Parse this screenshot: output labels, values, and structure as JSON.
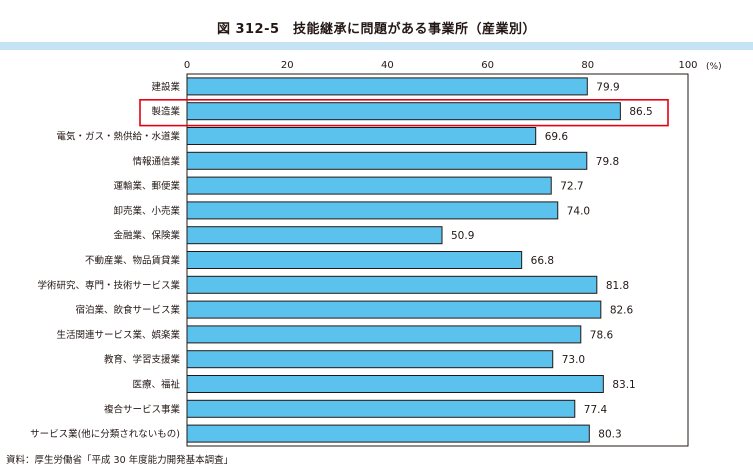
{
  "chart_data": {
    "type": "bar",
    "orientation": "horizontal",
    "title": "図 312-5　技能継承に問題がある事業所（産業別）",
    "unit": "(%)",
    "xlim": [
      0,
      100
    ],
    "xticks": [
      0,
      20,
      40,
      60,
      80,
      100
    ],
    "categories": [
      "建設業",
      "製造業",
      "電気・ガス・熱供給・水道業",
      "情報通信業",
      "運輸業、郵便業",
      "卸売業、小売業",
      "金融業、保険業",
      "不動産業、物品賃貸業",
      "学術研究、専門・技術サービス業",
      "宿泊業、飲食サービス業",
      "生活関連サービス業、娯楽業",
      "教育、学習支援業",
      "医療、福祉",
      "複合サービス事業",
      "サービス業(他に分類されないもの)"
    ],
    "values": [
      79.9,
      86.5,
      69.6,
      79.8,
      72.7,
      74.0,
      50.9,
      66.8,
      81.8,
      82.6,
      78.6,
      73.0,
      83.1,
      77.4,
      80.3
    ],
    "value_labels": [
      "79.9",
      "86.5",
      "69.6",
      "79.8",
      "72.7",
      "74.0",
      "50.9",
      "66.8",
      "81.8",
      "82.6",
      "78.6",
      "73.0",
      "83.1",
      "77.4",
      "80.3"
    ],
    "highlighted_category": "製造業",
    "grid": false,
    "source": "資料：厚生労働省「平成 30 年度能力開発基本調査」"
  },
  "colors": {
    "bar_fill": "#5bc2ee",
    "bar_stroke": "#231815",
    "highlight_box": "#e60012",
    "title_band": "#c6e3f5"
  }
}
